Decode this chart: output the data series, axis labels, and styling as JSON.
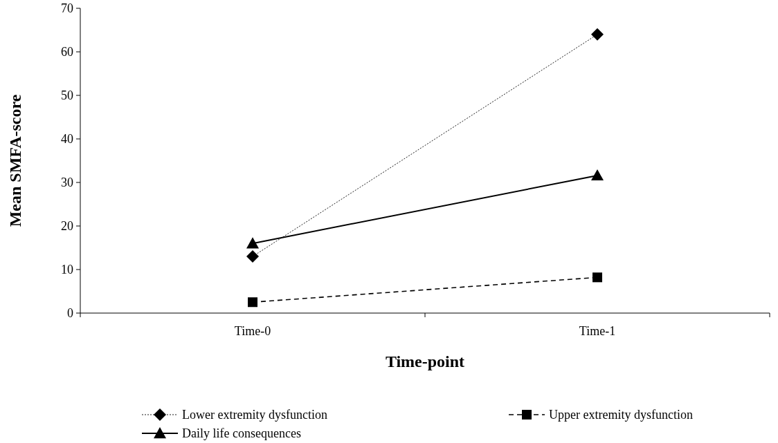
{
  "chart_data": {
    "type": "line",
    "xlabel": "Time-point",
    "ylabel": "Mean SMFA-score",
    "categories": [
      "Time-0",
      "Time-1"
    ],
    "series": [
      {
        "name": "Lower extremity dysfunction",
        "color": "#000000",
        "values": [
          13,
          64
        ],
        "marker": "diamond",
        "line_style": "dotted"
      },
      {
        "name": "Upper extremity dysfunction",
        "color": "#000000",
        "values": [
          2.5,
          8.2
        ],
        "marker": "square",
        "line_style": "dashed"
      },
      {
        "name": "Daily life consequences",
        "color": "#000000",
        "values": [
          16,
          31.6
        ],
        "marker": "triangle",
        "line_style": "solid"
      }
    ],
    "ylim": [
      0,
      70
    ],
    "yticks": [
      0,
      10,
      20,
      30,
      40,
      50,
      60,
      70
    ],
    "legend": "bottom",
    "grid": false
  }
}
